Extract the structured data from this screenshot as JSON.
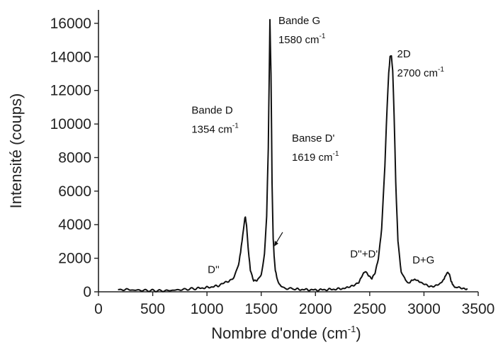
{
  "chart_data": {
    "type": "line",
    "xlabel": "Nombre d'onde (cm",
    "xlabel_sup": "-1",
    "xlabel_end": ")",
    "ylabel": "Intensité (coups)",
    "xlim": [
      0,
      3500
    ],
    "ylim": [
      0,
      16800
    ],
    "x_ticks": [
      "0",
      "500",
      "1000",
      "1500",
      "2000",
      "2500",
      "3000",
      "3500"
    ],
    "y_ticks": [
      "0",
      "2000",
      "4000",
      "6000",
      "8000",
      "10000",
      "12000",
      "14000",
      "16000"
    ],
    "grid": false,
    "series": [
      {
        "x": [
          180,
          300,
          450,
          600,
          750,
          900,
          1000,
          1100,
          1150,
          1200,
          1250,
          1290,
          1310,
          1330,
          1345,
          1354,
          1365,
          1380,
          1400,
          1430,
          1460,
          1500,
          1530,
          1550,
          1565,
          1575,
          1580,
          1590,
          1600,
          1610,
          1619,
          1630,
          1650,
          1680,
          1720,
          1800,
          1900,
          2000,
          2100,
          2200,
          2300,
          2350,
          2400,
          2430,
          2460,
          2490,
          2520,
          2550,
          2580,
          2610,
          2640,
          2660,
          2675,
          2688,
          2700,
          2712,
          2725,
          2740,
          2760,
          2790,
          2830,
          2870,
          2900,
          2930,
          2960,
          3000,
          3050,
          3100,
          3150,
          3180,
          3200,
          3220,
          3235,
          3250,
          3270,
          3300,
          3350,
          3400
        ],
        "y": [
          150,
          110,
          80,
          60,
          120,
          200,
          250,
          350,
          500,
          600,
          900,
          1600,
          2400,
          3400,
          4200,
          4500,
          4000,
          2600,
          1300,
          700,
          650,
          1000,
          2200,
          4500,
          8500,
          13500,
          16200,
          13000,
          6500,
          3200,
          2200,
          1300,
          650,
          350,
          220,
          160,
          130,
          110,
          130,
          160,
          240,
          350,
          600,
          950,
          1200,
          1000,
          800,
          1100,
          2000,
          3800,
          7500,
          11000,
          13000,
          14000,
          14100,
          13200,
          10500,
          6500,
          3000,
          1200,
          650,
          550,
          700,
          750,
          600,
          450,
          350,
          350,
          450,
          700,
          950,
          1150,
          1000,
          650,
          350,
          250,
          200,
          200
        ]
      }
    ],
    "annotations": [
      {
        "id": "g",
        "lines": [
          "Bande G",
          "1580 cm"
        ],
        "sup": "-1",
        "at": [
          1580,
          16200
        ]
      },
      {
        "id": "d2",
        "lines": [
          "2D",
          "2700 cm"
        ],
        "sup": "-1",
        "at": [
          2700,
          14100
        ]
      },
      {
        "id": "d",
        "lines": [
          "Bande D",
          "1354 cm"
        ],
        "sup": "-1",
        "at": [
          1354,
          4500
        ]
      },
      {
        "id": "dprime",
        "lines": [
          "Banse D'",
          "1619 cm"
        ],
        "sup": "-1",
        "at": [
          1619,
          2200
        ]
      },
      {
        "id": "dpp",
        "lines": [
          "D''"
        ],
        "at": [
          1100,
          350
        ]
      },
      {
        "id": "dppdp",
        "lines": [
          "D''+D'"
        ],
        "at": [
          2460,
          1200
        ]
      },
      {
        "id": "dg",
        "lines": [
          "D+G"
        ],
        "at": [
          2930,
          750
        ]
      }
    ]
  }
}
